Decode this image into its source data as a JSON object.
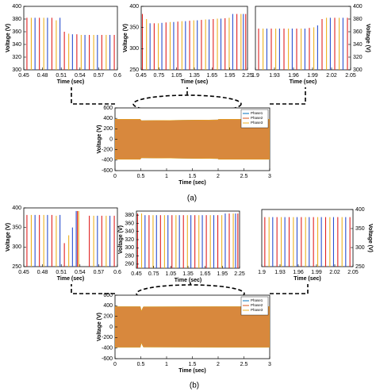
{
  "panel_labels": [
    "(a)",
    "(b)"
  ],
  "chart_data": [
    {
      "type": "spike",
      "xlabel": "Time (sec)",
      "ylabel": "Voltage (V)",
      "xlim": [
        0.45,
        0.6
      ],
      "xticks": [
        0.45,
        0.48,
        0.51,
        0.54,
        0.57,
        0.6
      ],
      "ylim": [
        300,
        400
      ],
      "yticks": [
        300,
        320,
        340,
        360,
        380,
        400
      ],
      "series": [
        {
          "color": "#e02020",
          "x": [
            0.455,
            0.475,
            0.495,
            0.515,
            0.535,
            0.555,
            0.575,
            0.595
          ],
          "values": [
            382,
            382,
            382,
            360,
            356,
            355,
            355,
            355
          ]
        },
        {
          "color": "#edb120",
          "x": [
            0.462,
            0.482,
            0.502,
            0.522,
            0.542,
            0.562,
            0.582
          ],
          "values": [
            382,
            382,
            378,
            357,
            355,
            355,
            355
          ]
        },
        {
          "color": "#2a4fd0",
          "x": [
            0.468,
            0.488,
            0.508,
            0.528,
            0.548,
            0.568,
            0.588
          ],
          "values": [
            382,
            382,
            382,
            356,
            355,
            355,
            355
          ]
        }
      ]
    },
    {
      "type": "spike",
      "xlabel": "Time (sec)",
      "ylabel": "Voltage (V)",
      "xlim": [
        0.45,
        2.25
      ],
      "xticks": [
        0.45,
        0.75,
        1.05,
        1.35,
        1.65,
        1.95,
        2.25
      ],
      "ylim": [
        250,
        400
      ],
      "yticks": [
        250,
        300,
        350,
        400
      ],
      "series": [
        {
          "color": "#e02020",
          "x": [
            0.47,
            0.67,
            0.87,
            1.07,
            1.27,
            1.47,
            1.67,
            1.87,
            2.07,
            2.22
          ],
          "values": [
            382,
            360,
            362,
            364,
            366,
            368,
            370,
            372,
            382,
            382
          ]
        },
        {
          "color": "#edb120",
          "x": [
            0.54,
            0.74,
            0.94,
            1.14,
            1.34,
            1.54,
            1.74,
            1.94,
            2.14
          ],
          "values": [
            370,
            360,
            363,
            365,
            367,
            369,
            371,
            373,
            382
          ]
        },
        {
          "color": "#2a4fd0",
          "x": [
            0.6,
            0.8,
            1.0,
            1.2,
            1.4,
            1.6,
            1.8,
            2.0,
            2.18
          ],
          "values": [
            360,
            361,
            363,
            365,
            367,
            369,
            371,
            382,
            382
          ]
        }
      ]
    },
    {
      "type": "spike",
      "xlabel": "Time (sec)",
      "ylabel": "Voltage (V)",
      "y_axis_side": "right",
      "xlim": [
        1.9,
        2.05
      ],
      "xticks": [
        1.9,
        1.93,
        1.96,
        1.99,
        2.02,
        2.05
      ],
      "ylim": [
        300,
        400
      ],
      "yticks": [
        300,
        320,
        340,
        360,
        380,
        400
      ],
      "series": [
        {
          "color": "#e02020",
          "x": [
            1.905,
            1.925,
            1.945,
            1.965,
            1.985,
            2.005,
            2.025,
            2.045
          ],
          "values": [
            365,
            365,
            365,
            365,
            366,
            380,
            382,
            382
          ]
        },
        {
          "color": "#edb120",
          "x": [
            1.912,
            1.932,
            1.952,
            1.972,
            1.992,
            2.012,
            2.032
          ],
          "values": [
            365,
            365,
            365,
            365,
            367,
            382,
            382
          ]
        },
        {
          "color": "#2a4fd0",
          "x": [
            1.918,
            1.938,
            1.958,
            1.978,
            1.998,
            2.018,
            2.038
          ],
          "values": [
            365,
            365,
            365,
            365,
            370,
            382,
            382
          ]
        }
      ]
    },
    {
      "type": "band",
      "xlabel": "Time (sec)",
      "ylabel": "Voltage (V)",
      "xlim": [
        0,
        3
      ],
      "xticks": [
        0,
        0.5,
        1,
        1.5,
        2,
        2.5,
        3
      ],
      "ylim": [
        -600,
        600
      ],
      "yticks": [
        -600,
        -400,
        -200,
        0,
        200,
        400,
        600
      ],
      "legend": "upper right",
      "series": [
        {
          "name": "Phase1",
          "color": "#0072bd",
          "x": [
            0,
            0.49,
            0.51,
            1.99,
            2.01,
            3
          ],
          "values": [
            382,
            382,
            355,
            370,
            382,
            382
          ]
        },
        {
          "name": "Phase2",
          "color": "#d95319",
          "x": [
            0,
            0.49,
            0.51,
            1.99,
            2.01,
            3
          ],
          "values": [
            382,
            382,
            355,
            370,
            382,
            382
          ]
        },
        {
          "name": "Phase3",
          "color": "#edb120",
          "x": [
            0,
            0.49,
            0.51,
            1.99,
            2.01,
            3
          ],
          "values": [
            382,
            382,
            355,
            370,
            382,
            382
          ]
        }
      ]
    },
    {
      "type": "spike",
      "xlabel": "Time (sec)",
      "ylabel": "Voltage (V)",
      "xlim": [
        0.45,
        0.6
      ],
      "xticks": [
        0.45,
        0.48,
        0.51,
        0.54,
        0.57,
        0.6
      ],
      "ylim": [
        250,
        400
      ],
      "yticks": [
        250,
        300,
        350,
        400
      ],
      "series": [
        {
          "color": "#e02020",
          "x": [
            0.455,
            0.475,
            0.495,
            0.515,
            0.536,
            0.555,
            0.575,
            0.595
          ],
          "values": [
            382,
            382,
            382,
            310,
            392,
            380,
            380,
            380
          ]
        },
        {
          "color": "#edb120",
          "x": [
            0.462,
            0.482,
            0.502,
            0.522,
            0.538,
            0.562,
            0.582
          ],
          "values": [
            382,
            382,
            380,
            330,
            392,
            380,
            380
          ]
        },
        {
          "color": "#2a4fd0",
          "x": [
            0.468,
            0.488,
            0.508,
            0.528,
            0.534,
            0.568,
            0.588
          ],
          "values": [
            382,
            382,
            382,
            350,
            392,
            380,
            380
          ]
        }
      ]
    },
    {
      "type": "spike",
      "xlabel": "Time (sec)",
      "ylabel": "Voltage (V)",
      "xlim": [
        0.45,
        2.25
      ],
      "xticks": [
        0.45,
        0.75,
        1.05,
        1.35,
        1.65,
        1.95,
        2.25
      ],
      "ylim": [
        250,
        390
      ],
      "yticks": [
        260,
        280,
        300,
        320,
        340,
        360,
        380
      ],
      "series": [
        {
          "color": "#e02020",
          "x": [
            0.47,
            0.67,
            0.87,
            1.07,
            1.27,
            1.47,
            1.67,
            1.87,
            2.07,
            2.22
          ],
          "values": [
            384,
            380,
            380,
            380,
            380,
            380,
            380,
            380,
            384,
            384
          ]
        },
        {
          "color": "#edb120",
          "x": [
            0.54,
            0.74,
            0.94,
            1.14,
            1.34,
            1.54,
            1.74,
            1.94,
            2.14
          ],
          "values": [
            384,
            380,
            380,
            380,
            380,
            380,
            380,
            380,
            384
          ]
        },
        {
          "color": "#2a4fd0",
          "x": [
            0.6,
            0.8,
            1.0,
            1.2,
            1.4,
            1.6,
            1.8,
            2.0,
            2.18
          ],
          "values": [
            380,
            380,
            380,
            380,
            380,
            380,
            380,
            384,
            384
          ]
        }
      ]
    },
    {
      "type": "spike",
      "xlabel": "Time (sec)",
      "ylabel": "Voltage (V)",
      "y_axis_side": "right",
      "xlim": [
        1.9,
        2.05
      ],
      "xticks": [
        1.9,
        1.93,
        1.96,
        1.99,
        2.02,
        2.05
      ],
      "ylim": [
        250,
        400
      ],
      "yticks": [
        250,
        300,
        350,
        400
      ],
      "series": [
        {
          "color": "#e02020",
          "x": [
            1.905,
            1.925,
            1.945,
            1.965,
            1.985,
            2.005,
            2.025,
            2.045
          ],
          "values": [
            380,
            380,
            380,
            380,
            380,
            380,
            380,
            380
          ]
        },
        {
          "color": "#edb120",
          "x": [
            1.912,
            1.932,
            1.952,
            1.972,
            1.992,
            2.012,
            2.032
          ],
          "values": [
            380,
            380,
            380,
            380,
            380,
            380,
            380
          ]
        },
        {
          "color": "#2a4fd0",
          "x": [
            1.918,
            1.938,
            1.958,
            1.978,
            1.998,
            2.018,
            2.038
          ],
          "values": [
            380,
            380,
            380,
            380,
            380,
            380,
            380
          ]
        }
      ]
    },
    {
      "type": "band",
      "xlabel": "Time (sec)",
      "ylabel": "Voltage (V)",
      "xlim": [
        0,
        3
      ],
      "xticks": [
        0,
        0.5,
        1,
        1.5,
        2,
        2.5,
        3
      ],
      "ylim": [
        -600,
        600
      ],
      "yticks": [
        -600,
        -400,
        -200,
        0,
        200,
        400,
        600
      ],
      "legend": "upper right",
      "series": [
        {
          "name": "Phase1",
          "color": "#0072bd",
          "x": [
            0,
            0.49,
            0.51,
            0.55,
            2,
            3
          ],
          "values": [
            382,
            382,
            300,
            380,
            382,
            382
          ]
        },
        {
          "name": "Phase2",
          "color": "#d95319",
          "x": [
            0,
            0.49,
            0.51,
            0.55,
            2,
            3
          ],
          "values": [
            382,
            382,
            300,
            380,
            382,
            382
          ]
        },
        {
          "name": "Phase3",
          "color": "#edb120",
          "x": [
            0,
            0.49,
            0.51,
            0.55,
            2,
            3
          ],
          "values": [
            382,
            382,
            300,
            380,
            382,
            382
          ]
        }
      ]
    }
  ]
}
